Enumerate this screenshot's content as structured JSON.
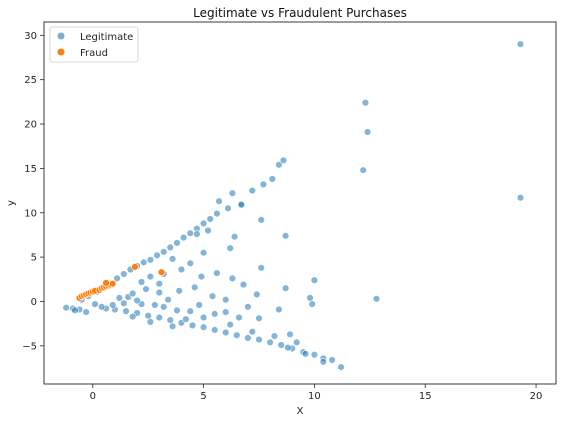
{
  "chart_data": {
    "type": "scatter",
    "title": "Legitimate vs Fraudulent Purchases",
    "xlabel": "X",
    "ylabel": "y",
    "xlim": [
      -2.2,
      20.9
    ],
    "ylim": [
      -9.3,
      31.5
    ],
    "xticks": [
      0,
      5,
      10,
      15,
      20
    ],
    "yticks": [
      -5,
      0,
      5,
      10,
      15,
      20,
      25,
      30
    ],
    "grid": false,
    "legend_position": "top-left",
    "series": [
      {
        "name": "Legitimate",
        "color": "#1f77b4",
        "points": [
          [
            -1.2,
            -0.7
          ],
          [
            -0.9,
            -0.8
          ],
          [
            -0.6,
            -0.9
          ],
          [
            -0.3,
            -1.2
          ],
          [
            -0.5,
            0.2
          ],
          [
            -0.2,
            0.6
          ],
          [
            0.2,
            1.1
          ],
          [
            0.5,
            1.5
          ],
          [
            0.8,
            2.0
          ],
          [
            1.1,
            2.6
          ],
          [
            1.4,
            3.1
          ],
          [
            1.7,
            3.6
          ],
          [
            2.0,
            4.0
          ],
          [
            2.3,
            4.4
          ],
          [
            2.6,
            4.7
          ],
          [
            2.9,
            5.2
          ],
          [
            3.2,
            5.6
          ],
          [
            3.5,
            6.1
          ],
          [
            3.8,
            6.6
          ],
          [
            4.1,
            7.2
          ],
          [
            4.4,
            7.7
          ],
          [
            4.7,
            8.2
          ],
          [
            5.0,
            8.8
          ],
          [
            5.3,
            9.3
          ],
          [
            5.6,
            9.9
          ],
          [
            6.1,
            10.5
          ],
          [
            6.7,
            11.0
          ],
          [
            7.2,
            12.5
          ],
          [
            7.7,
            13.2
          ],
          [
            8.1,
            13.8
          ],
          [
            8.4,
            15.4
          ],
          [
            8.6,
            15.9
          ],
          [
            7.6,
            9.2
          ],
          [
            8.7,
            7.4
          ],
          [
            6.3,
            12.2
          ],
          [
            6.7,
            10.9
          ],
          [
            5.7,
            11.3
          ],
          [
            4.7,
            7.6
          ],
          [
            5.2,
            8.0
          ],
          [
            3.6,
            4.8
          ],
          [
            4.4,
            4.3
          ],
          [
            2.6,
            2.8
          ],
          [
            4.9,
            2.8
          ],
          [
            5.6,
            3.2
          ],
          [
            7.6,
            3.8
          ],
          [
            6.3,
            2.6
          ],
          [
            6.8,
            1.9
          ],
          [
            8.7,
            1.5
          ],
          [
            7.4,
            0.8
          ],
          [
            9.8,
            0.4
          ],
          [
            10.0,
            2.4
          ],
          [
            9.9,
            -0.3
          ],
          [
            8.4,
            -0.9
          ],
          [
            7.5,
            -1.9
          ],
          [
            6.0,
            -1.2
          ],
          [
            5.5,
            -1.4
          ],
          [
            4.4,
            -1.1
          ],
          [
            3.2,
            -0.6
          ],
          [
            2.2,
            -0.3
          ],
          [
            1.6,
            0.5
          ],
          [
            0.6,
            -0.8
          ],
          [
            1.0,
            -0.9
          ],
          [
            1.5,
            -1.1
          ],
          [
            2.0,
            -1.3
          ],
          [
            2.5,
            -1.6
          ],
          [
            3.0,
            -1.8
          ],
          [
            3.5,
            -2.1
          ],
          [
            4.0,
            -2.4
          ],
          [
            4.5,
            -2.7
          ],
          [
            5.0,
            -2.9
          ],
          [
            5.5,
            -3.2
          ],
          [
            6.0,
            -3.5
          ],
          [
            6.5,
            -3.8
          ],
          [
            7.0,
            -4.1
          ],
          [
            7.5,
            -4.3
          ],
          [
            8.0,
            -4.6
          ],
          [
            8.5,
            -4.9
          ],
          [
            9.0,
            -5.3
          ],
          [
            9.5,
            -5.7
          ],
          [
            10.0,
            -6.0
          ],
          [
            10.4,
            -6.4
          ],
          [
            10.8,
            -6.6
          ],
          [
            11.2,
            -7.4
          ],
          [
            10.4,
            -6.8
          ],
          [
            9.6,
            -5.9
          ],
          [
            8.8,
            -5.2
          ],
          [
            1.2,
            0.4
          ],
          [
            1.8,
            0.9
          ],
          [
            2.4,
            1.4
          ],
          [
            3.0,
            1.0
          ],
          [
            3.4,
            0.2
          ],
          [
            2.8,
            -0.4
          ],
          [
            2.0,
            0.1
          ],
          [
            1.4,
            -0.2
          ],
          [
            3.8,
            -1.0
          ],
          [
            4.2,
            -2.0
          ],
          [
            3.6,
            -2.8
          ],
          [
            2.6,
            -2.3
          ],
          [
            1.8,
            -1.7
          ],
          [
            5.0,
            -1.8
          ],
          [
            6.2,
            -2.6
          ],
          [
            7.2,
            -3.4
          ],
          [
            8.2,
            -3.9
          ],
          [
            4.8,
            -0.4
          ],
          [
            5.4,
            0.6
          ],
          [
            6.0,
            0.2
          ],
          [
            7.0,
            -0.6
          ],
          [
            6.6,
            -1.8
          ],
          [
            8.9,
            -3.7
          ],
          [
            9.2,
            -4.6
          ],
          [
            3.2,
            3.1
          ],
          [
            4.0,
            3.6
          ],
          [
            3.0,
            2.0
          ],
          [
            2.2,
            2.2
          ],
          [
            4.6,
            1.6
          ],
          [
            3.9,
            1.2
          ],
          [
            0.1,
            -0.3
          ],
          [
            0.4,
            -0.6
          ],
          [
            0.9,
            -0.4
          ],
          [
            -0.8,
            -1.0
          ],
          [
            5.0,
            5.5
          ],
          [
            6.2,
            6.0
          ],
          [
            6.4,
            7.3
          ],
          [
            12.3,
            22.4
          ],
          [
            12.4,
            19.1
          ],
          [
            12.2,
            14.8
          ],
          [
            19.3,
            29.0
          ],
          [
            19.3,
            11.7
          ],
          [
            12.8,
            0.3
          ]
        ]
      },
      {
        "name": "Fraud",
        "color": "#ff7f0e",
        "points": [
          [
            -0.6,
            0.4
          ],
          [
            -0.5,
            0.6
          ],
          [
            -0.4,
            0.7
          ],
          [
            -0.3,
            0.8
          ],
          [
            -0.2,
            0.9
          ],
          [
            -0.1,
            1.0
          ],
          [
            0.0,
            1.1
          ],
          [
            0.1,
            1.2
          ],
          [
            0.3,
            1.3
          ],
          [
            0.4,
            1.5
          ],
          [
            0.5,
            1.6
          ],
          [
            0.6,
            1.7
          ],
          [
            0.7,
            1.8
          ],
          [
            0.8,
            1.9
          ],
          [
            0.9,
            2.0
          ],
          [
            0.6,
            2.1
          ],
          [
            1.9,
            3.9
          ],
          [
            3.1,
            3.3
          ]
        ]
      }
    ]
  }
}
